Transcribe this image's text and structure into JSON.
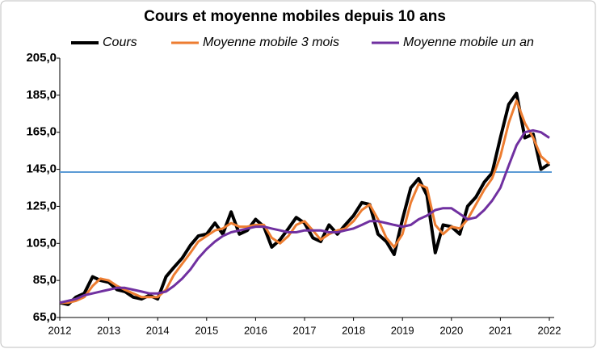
{
  "chart_data": {
    "type": "line",
    "title": "Cours et moyenne mobiles depuis 10 ans",
    "x": [
      2012,
      2012.17,
      2012.33,
      2012.5,
      2012.67,
      2012.83,
      2013,
      2013.17,
      2013.33,
      2013.5,
      2013.67,
      2013.83,
      2014,
      2014.17,
      2014.33,
      2014.5,
      2014.67,
      2014.83,
      2015,
      2015.17,
      2015.33,
      2015.5,
      2015.67,
      2015.83,
      2016,
      2016.17,
      2016.33,
      2016.5,
      2016.67,
      2016.83,
      2017,
      2017.17,
      2017.33,
      2017.5,
      2017.67,
      2017.83,
      2018,
      2018.17,
      2018.33,
      2018.5,
      2018.67,
      2018.83,
      2019,
      2019.17,
      2019.33,
      2019.5,
      2019.67,
      2019.83,
      2020,
      2020.17,
      2020.33,
      2020.5,
      2020.67,
      2020.83,
      2021,
      2021.17,
      2021.33,
      2021.5,
      2021.67,
      2021.83,
      2022
    ],
    "series": [
      {
        "name": "Cours",
        "color": "#000000",
        "width": 4,
        "values": [
          73,
          72,
          76,
          78,
          87,
          85,
          84,
          80,
          79,
          76,
          75,
          77,
          75,
          87,
          92,
          97,
          104,
          109,
          110,
          116,
          110,
          122,
          110,
          112,
          118,
          114,
          103,
          107,
          113,
          119,
          116,
          108,
          106,
          115,
          110,
          115,
          120,
          127,
          126,
          110,
          106,
          99,
          118,
          135,
          140,
          131,
          100,
          115,
          114,
          110,
          125,
          130,
          138,
          143,
          162,
          180,
          186,
          162,
          164,
          145,
          148
        ]
      },
      {
        "name": "Moyenne mobile 3 mois",
        "color": "#ed7d31",
        "width": 3,
        "values": [
          73,
          73,
          74,
          76,
          82,
          86,
          85,
          82,
          80,
          78,
          76,
          76,
          76,
          80,
          88,
          94,
          100,
          106,
          109,
          112,
          113,
          116,
          114,
          114,
          115,
          115,
          108,
          105,
          109,
          115,
          117,
          112,
          107,
          110,
          112,
          113,
          117,
          123,
          126,
          118,
          108,
          103,
          110,
          127,
          137,
          135,
          115,
          110,
          114,
          113,
          118,
          126,
          134,
          140,
          152,
          170,
          182,
          170,
          162,
          152,
          148
        ]
      },
      {
        "name": "Moyenne mobile un an",
        "color": "#7030a0",
        "width": 3,
        "values": [
          73,
          74,
          75,
          77,
          78,
          79,
          80,
          81,
          81,
          80,
          79,
          78,
          78,
          79,
          82,
          86,
          91,
          97,
          102,
          106,
          109,
          111,
          112,
          113,
          114,
          114,
          113,
          112,
          111,
          111,
          112,
          112,
          112,
          111,
          111,
          112,
          113,
          115,
          117,
          117,
          116,
          115,
          114,
          115,
          118,
          120,
          123,
          124,
          124,
          121,
          118,
          119,
          123,
          128,
          135,
          147,
          158,
          165,
          166,
          165,
          162
        ]
      }
    ],
    "reference_line": {
      "value": 143.5,
      "color": "#5b9bd5"
    },
    "xlim": [
      2012,
      2022
    ],
    "xticks": [
      2012,
      2013,
      2014,
      2015,
      2016,
      2017,
      2018,
      2019,
      2020,
      2021,
      2022
    ],
    "ylim": [
      65,
      205
    ],
    "yticks": [
      {
        "value": 65,
        "label": "65,0"
      },
      {
        "value": 85,
        "label": "85,0"
      },
      {
        "value": 105,
        "label": "105,0"
      },
      {
        "value": 125,
        "label": "125,0"
      },
      {
        "value": 145,
        "label": "145,0"
      },
      {
        "value": 165,
        "label": "165,0"
      },
      {
        "value": 185,
        "label": "185,0"
      },
      {
        "value": 205,
        "label": "205,0"
      }
    ],
    "legend": "top"
  }
}
